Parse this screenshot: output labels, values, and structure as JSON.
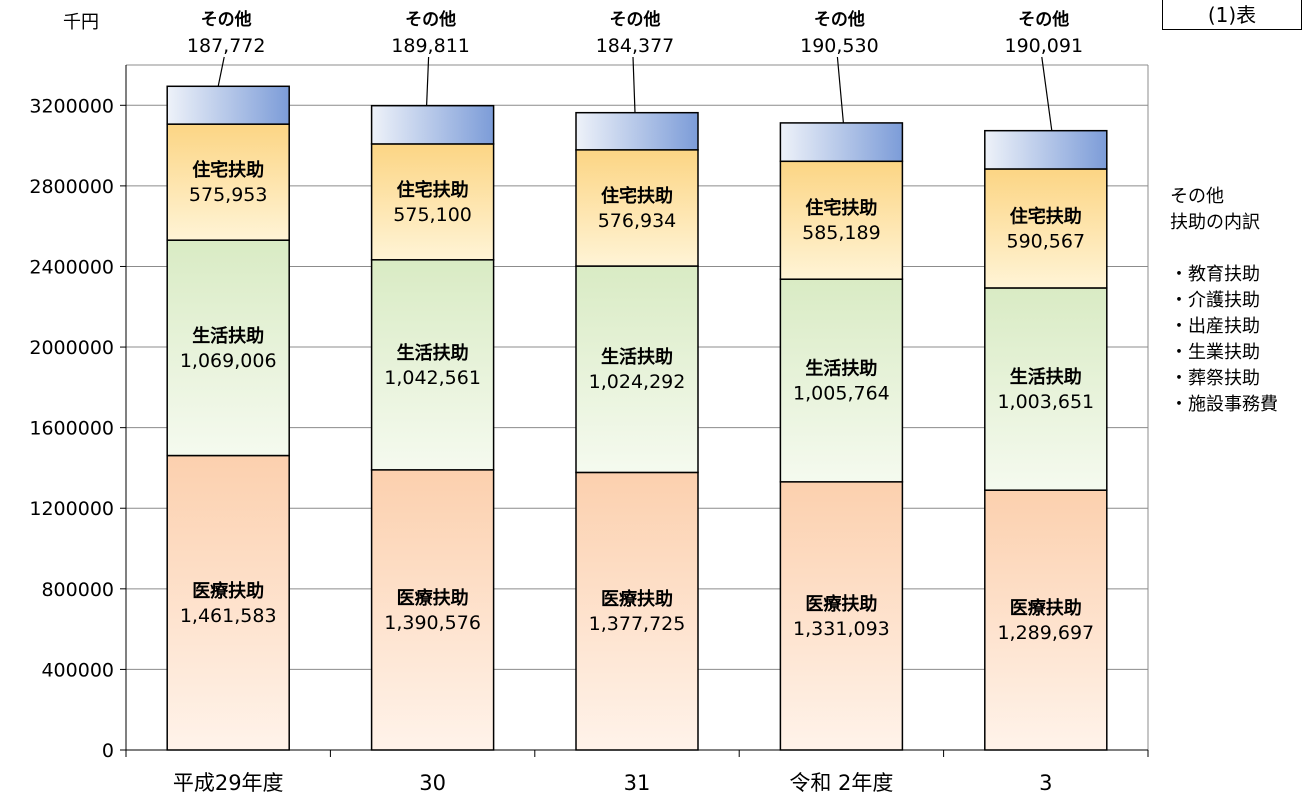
{
  "unit_label": "千円",
  "table_tag": "(1)表",
  "side_note": {
    "title_lines": [
      "その他",
      "扶助の内訳"
    ],
    "items": [
      "・教育扶助",
      "・介護扶助",
      "・出産扶助",
      "・生業扶助",
      "・葬祭扶助",
      "・施設事務費"
    ]
  },
  "colors": {
    "medical_top": "#FCD0AE",
    "medical_bottom": "#FFF3EA",
    "living_top": "#D9EBC4",
    "living_bottom": "#F5FAEF",
    "housing_top": "#FCD584",
    "housing_bottom": "#FFF4D6",
    "other_left": "#EEF2F9",
    "other_right": "#7C9CD8",
    "gridline": "#8C8C8C"
  },
  "chart_data": {
    "type": "bar",
    "stacked": true,
    "title": "",
    "xlabel": "",
    "ylabel": "千円",
    "ylim": [
      0,
      3400000
    ],
    "yticks": [
      0,
      400000,
      800000,
      1200000,
      1600000,
      2000000,
      2400000,
      2800000,
      3200000
    ],
    "ytick_labels": [
      "0",
      "400000",
      "800000",
      "1200000",
      "1600000",
      "2000000",
      "2400000",
      "2800000",
      "3200000"
    ],
    "grid": true,
    "categories": [
      "平成29年度",
      "30",
      "31",
      "令和 2年度",
      "3"
    ],
    "series": [
      {
        "name": "医療扶助",
        "values": [
          1461583,
          1390576,
          1377725,
          1331093,
          1289697
        ],
        "labels": [
          "1,461,583",
          "1,390,576",
          "1,377,725",
          "1,331,093",
          "1,289,697"
        ]
      },
      {
        "name": "生活扶助",
        "values": [
          1069006,
          1042561,
          1024292,
          1005764,
          1003651
        ],
        "labels": [
          "1,069,006",
          "1,042,561",
          "1,024,292",
          "1,005,764",
          "1,003,651"
        ]
      },
      {
        "name": "住宅扶助",
        "values": [
          575953,
          575100,
          576934,
          585189,
          590567
        ],
        "labels": [
          "575,953",
          "575,100",
          "576,934",
          "585,189",
          "590,567"
        ]
      },
      {
        "name": "その他",
        "values": [
          187772,
          189811,
          184377,
          190530,
          190091
        ],
        "labels": [
          "187,772",
          "189,811",
          "184,377",
          "190,530",
          "190,091"
        ]
      }
    ]
  }
}
